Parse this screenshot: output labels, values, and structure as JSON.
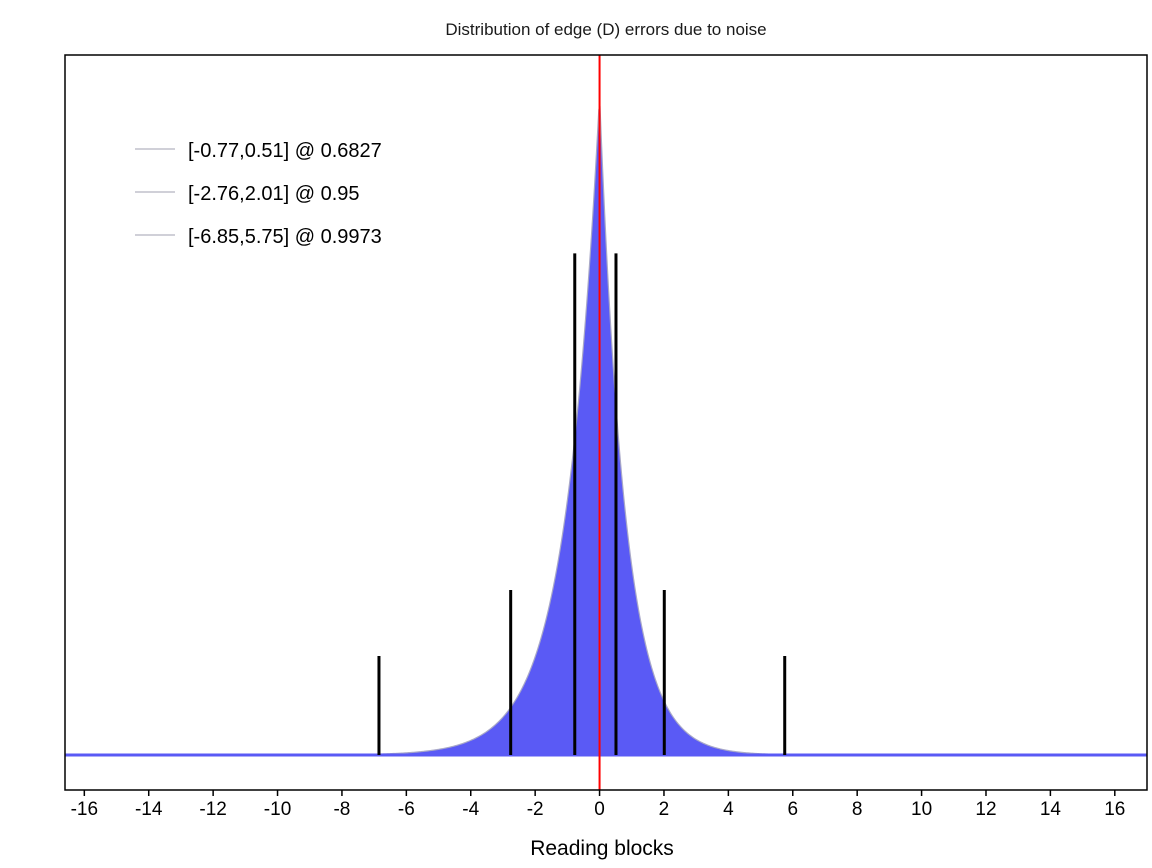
{
  "chart_data": {
    "type": "histogram",
    "title": "Distribution of edge (D) errors due to noise",
    "xlabel": "Reading blocks",
    "ylabel": "",
    "xlim": [
      -16.6,
      17
    ],
    "ylim": [
      0,
      1.0
    ],
    "xticks": [
      -16,
      -14,
      -12,
      -10,
      -8,
      -6,
      -4,
      -2,
      0,
      2,
      4,
      6,
      8,
      10,
      12,
      14,
      16
    ],
    "yticks_shown": false,
    "grid": false,
    "legend_position": "top-left",
    "colors": {
      "histogram_fill": "#5a5af5",
      "histogram_edge": "#a8a8c8",
      "zero_line": "#ff0000",
      "intervals": "#000000",
      "legend_line": "#d0d0d8"
    },
    "histogram": {
      "peak_x": 0,
      "peak_density": 1.0,
      "baseline_density": 0.0,
      "tail_scale_left": 1.05,
      "tail_scale_right": 0.8,
      "x_range": [
        -16.6,
        17
      ]
    },
    "zero_line_x": 0,
    "series": [
      {
        "name": "[-0.77,0.51] @ 0.6827",
        "lower": -0.77,
        "upper": 0.51,
        "height": 0.76
      },
      {
        "name": "[-2.76,2.01] @ 0.95",
        "lower": -2.76,
        "upper": 2.01,
        "height": 0.25
      },
      {
        "name": "[-6.85,5.75] @ 0.9973",
        "lower": -6.85,
        "upper": 5.75,
        "height": 0.15
      }
    ]
  }
}
